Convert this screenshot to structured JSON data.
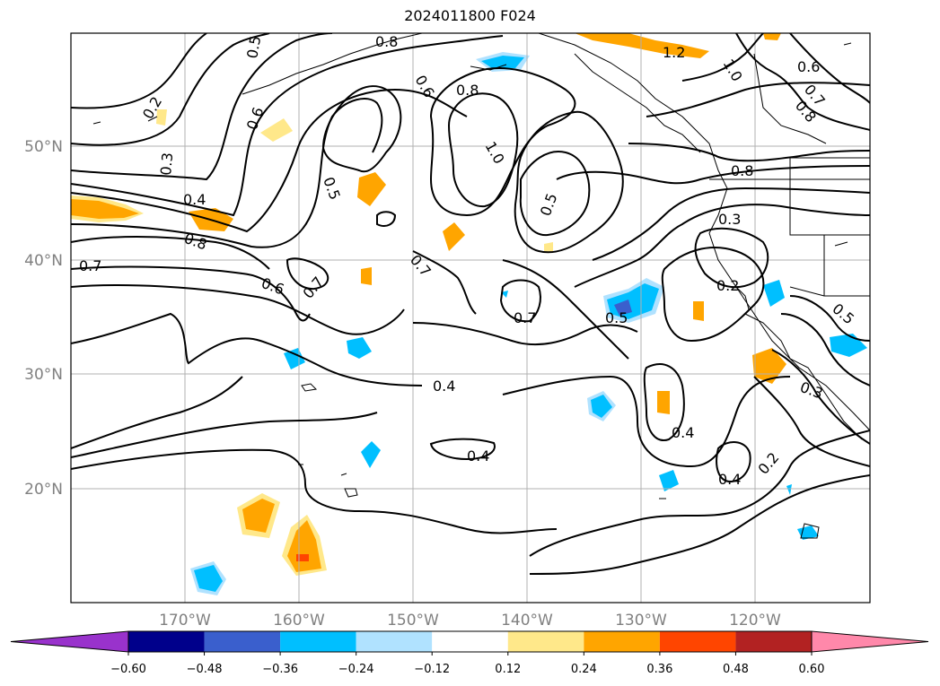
{
  "title": "2024011800 F024",
  "map": {
    "lat_labels": [
      "50°N",
      "40°N",
      "30°N",
      "20°N"
    ],
    "lon_labels": [
      "170°W",
      "160°W",
      "150°W",
      "140°W",
      "130°W",
      "120°W"
    ],
    "contour_labels": [
      "0.5",
      "0.8",
      "1.2",
      "1.0",
      "0.6",
      "0.7",
      "0.8",
      "0.6",
      "0.8",
      "0.6",
      "0.2",
      "0.3",
      "0.4",
      "0.8",
      "0.7",
      "0.6",
      "0.7",
      "0.5",
      "0.5",
      "1.0",
      "0.7",
      "0.5",
      "0.8",
      "0.3",
      "0.2",
      "0.7",
      "0.4",
      "0.4",
      "0.5",
      "0.4",
      "0.4",
      "0.2",
      "0.3"
    ],
    "colors": {
      "contour": "#000000",
      "grid": "#b0b0b0",
      "coast": "#000000"
    }
  },
  "colorbar": {
    "tick_labels": [
      "-0.60",
      "-0.48",
      "-0.36",
      "-0.24",
      "-0.12",
      "0.12",
      "0.24",
      "0.36",
      "0.48",
      "0.60"
    ],
    "colors": [
      "#9932cc",
      "#00008b",
      "#3a5fcd",
      "#00bfff",
      "#b0e2ff",
      "#ffffff",
      "#ffe88a",
      "#ffa500",
      "#ff4500",
      "#b22222",
      "#ff88aa"
    ]
  }
}
